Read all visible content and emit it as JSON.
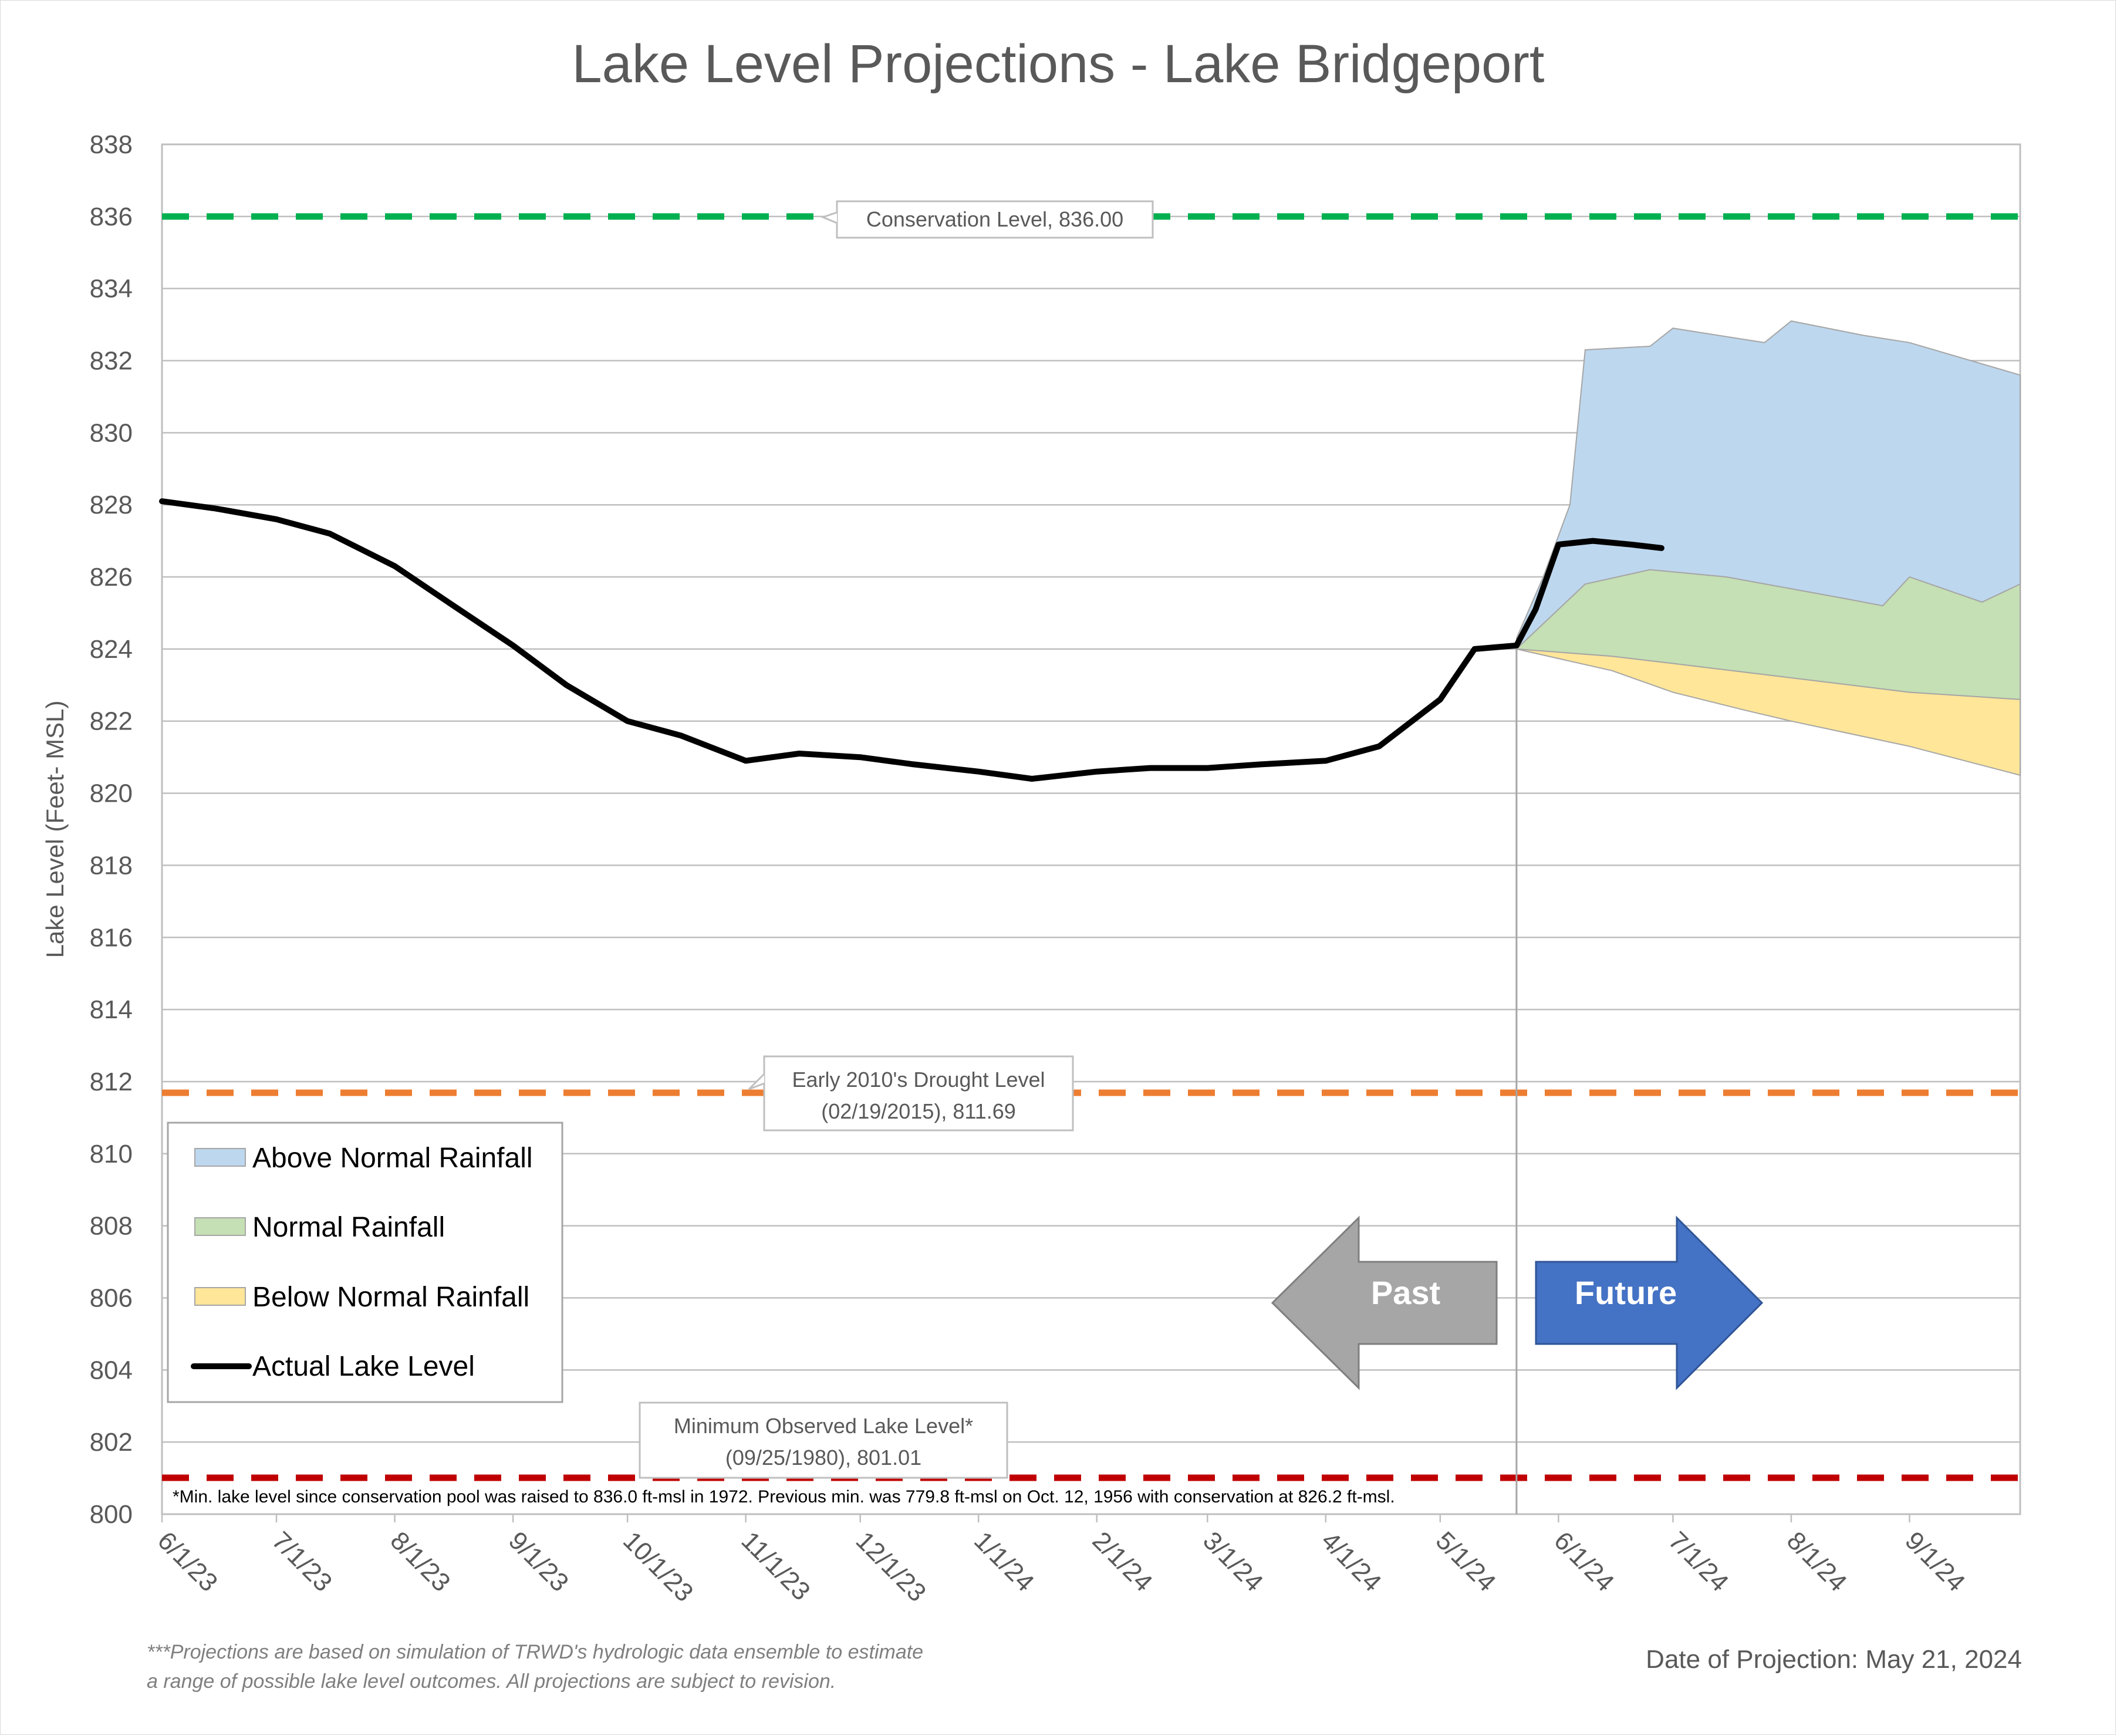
{
  "chart_data": {
    "type": "area",
    "title": "Lake Level Projections - Lake Bridgeport",
    "ylabel": "Lake Level (Feet- MSL)",
    "xlabel": "",
    "ylim": [
      800,
      838
    ],
    "y_ticks": [
      "800",
      "802",
      "804",
      "806",
      "808",
      "810",
      "812",
      "814",
      "816",
      "818",
      "820",
      "822",
      "824",
      "826",
      "828",
      "830",
      "832",
      "834",
      "836",
      "838"
    ],
    "x_ticks": [
      "6/1/23",
      "7/1/23",
      "8/1/23",
      "9/1/23",
      "10/1/23",
      "11/1/23",
      "12/1/23",
      "1/1/24",
      "2/1/24",
      "3/1/24",
      "4/1/24",
      "5/1/24",
      "6/1/24",
      "7/1/24",
      "8/1/24",
      "9/1/24"
    ],
    "x_range": [
      "2023-06-01",
      "2024-09-30"
    ],
    "grid": true,
    "legend_position": "lower-left",
    "projection_date": "2024-05-21",
    "reference_lines": [
      {
        "name": "Conservation Level",
        "value": 836.0,
        "color": "#00b050",
        "label_lines": [
          "Conservation Level, 836.00"
        ]
      },
      {
        "name": "Early 2010's Drought Level",
        "value": 811.69,
        "color": "#ed7d31",
        "label_lines": [
          "Early 2010's Drought Level",
          "(02/19/2015), 811.69"
        ]
      },
      {
        "name": "Minimum Observed Lake Level",
        "value": 801.01,
        "color": "#c00000",
        "label_lines": [
          "Minimum Observed Lake Level*",
          "(09/25/1980), 801.01"
        ]
      }
    ],
    "series": [
      {
        "name": "Actual Lake Level",
        "kind": "line",
        "color": "#000000",
        "points": [
          [
            "2023-06-01",
            828.1
          ],
          [
            "2023-06-15",
            827.9
          ],
          [
            "2023-07-01",
            827.6
          ],
          [
            "2023-07-15",
            827.2
          ],
          [
            "2023-08-01",
            826.3
          ],
          [
            "2023-08-15",
            825.3
          ],
          [
            "2023-09-01",
            824.1
          ],
          [
            "2023-09-15",
            823.0
          ],
          [
            "2023-10-01",
            822.0
          ],
          [
            "2023-10-15",
            821.6
          ],
          [
            "2023-11-01",
            820.9
          ],
          [
            "2023-11-15",
            821.1
          ],
          [
            "2023-12-01",
            821.0
          ],
          [
            "2023-12-15",
            820.8
          ],
          [
            "2024-01-01",
            820.6
          ],
          [
            "2024-01-15",
            820.4
          ],
          [
            "2024-02-01",
            820.6
          ],
          [
            "2024-02-15",
            820.7
          ],
          [
            "2024-03-01",
            820.7
          ],
          [
            "2024-03-15",
            820.8
          ],
          [
            "2024-04-01",
            820.9
          ],
          [
            "2024-04-15",
            821.3
          ],
          [
            "2024-05-01",
            822.6
          ],
          [
            "2024-05-10",
            824.0
          ],
          [
            "2024-05-21",
            824.1
          ],
          [
            "2024-05-26",
            825.1
          ],
          [
            "2024-06-01",
            826.9
          ],
          [
            "2024-06-10",
            827.0
          ],
          [
            "2024-06-20",
            826.9
          ],
          [
            "2024-06-28",
            826.8
          ]
        ]
      },
      {
        "name": "Above Normal Rainfall",
        "kind": "band",
        "color": "#bdd7ee",
        "upper": [
          [
            "2024-05-21",
            824.3
          ],
          [
            "2024-05-28",
            826.0
          ],
          [
            "2024-06-04",
            828.0
          ],
          [
            "2024-06-08",
            832.3
          ],
          [
            "2024-06-25",
            832.4
          ],
          [
            "2024-07-01",
            832.9
          ],
          [
            "2024-07-25",
            832.5
          ],
          [
            "2024-08-01",
            833.1
          ],
          [
            "2024-08-20",
            832.7
          ],
          [
            "2024-09-01",
            832.5
          ],
          [
            "2024-09-30",
            831.6
          ]
        ],
        "lower": [
          [
            "2024-05-21",
            824.0
          ],
          [
            "2024-06-08",
            825.8
          ],
          [
            "2024-06-25",
            826.2
          ],
          [
            "2024-07-15",
            826.0
          ],
          [
            "2024-08-15",
            825.4
          ],
          [
            "2024-08-25",
            825.2
          ],
          [
            "2024-09-01",
            826.0
          ],
          [
            "2024-09-20",
            825.3
          ],
          [
            "2024-09-30",
            825.8
          ]
        ]
      },
      {
        "name": "Normal Rainfall",
        "kind": "band",
        "color": "#c5e0b4",
        "upper": [
          [
            "2024-05-21",
            824.0
          ],
          [
            "2024-06-08",
            825.8
          ],
          [
            "2024-06-25",
            826.2
          ],
          [
            "2024-07-15",
            826.0
          ],
          [
            "2024-08-15",
            825.4
          ],
          [
            "2024-08-25",
            825.2
          ],
          [
            "2024-09-01",
            826.0
          ],
          [
            "2024-09-20",
            825.3
          ],
          [
            "2024-09-30",
            825.8
          ]
        ],
        "lower": [
          [
            "2024-05-21",
            824.0
          ],
          [
            "2024-06-15",
            823.8
          ],
          [
            "2024-07-01",
            823.6
          ],
          [
            "2024-08-01",
            823.2
          ],
          [
            "2024-09-01",
            822.8
          ],
          [
            "2024-09-30",
            822.6
          ]
        ]
      },
      {
        "name": "Below Normal Rainfall",
        "kind": "band",
        "color": "#ffe699",
        "upper": [
          [
            "2024-05-21",
            824.0
          ],
          [
            "2024-06-15",
            823.8
          ],
          [
            "2024-07-01",
            823.6
          ],
          [
            "2024-08-01",
            823.2
          ],
          [
            "2024-09-01",
            822.8
          ],
          [
            "2024-09-30",
            822.6
          ]
        ],
        "lower": [
          [
            "2024-05-21",
            824.0
          ],
          [
            "2024-06-15",
            823.4
          ],
          [
            "2024-07-01",
            822.8
          ],
          [
            "2024-07-20",
            822.3
          ],
          [
            "2024-08-01",
            822.0
          ],
          [
            "2024-09-01",
            821.3
          ],
          [
            "2024-09-30",
            820.5
          ]
        ]
      }
    ],
    "legend": [
      "Above Normal Rainfall",
      "Normal Rainfall",
      "Below Normal Rainfall",
      "Actual Lake Level"
    ],
    "arrows": {
      "past": "Past",
      "future": "Future"
    },
    "note": "*Min. lake level since conservation pool was raised to 836.0 ft-msl in 1972.  Previous min. was 779.8 ft-msl on Oct. 12, 1956 with conservation at 826.2 ft-msl.",
    "footnote_lines": [
      "***Projections are based on simulation of TRWD's hydrologic data ensemble to estimate",
      "a range of possible lake level outcomes.  All projections are subject to revision."
    ],
    "date_of_projection": "Date of Projection: May 21, 2024",
    "colors": {
      "grid": "#bfbfbf",
      "text": "#595959",
      "past_arrow": "#a6a6a6",
      "future_arrow": "#4472c4"
    }
  }
}
